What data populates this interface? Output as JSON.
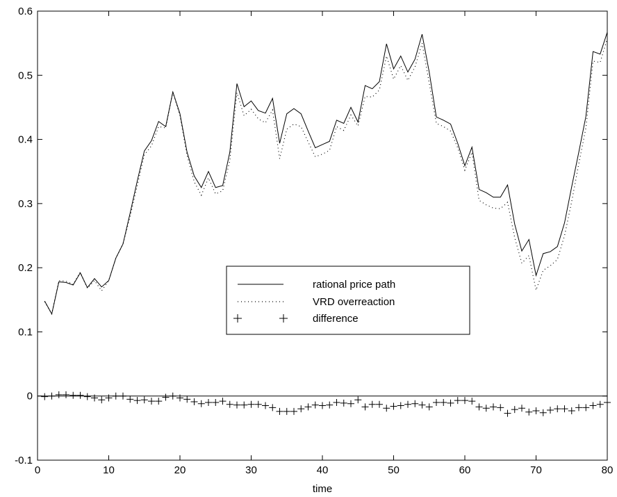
{
  "chart_data": {
    "type": "line",
    "title": "",
    "xlabel": "time",
    "ylabel": "",
    "xlim": [
      0,
      80
    ],
    "ylim": [
      -0.1,
      0.6
    ],
    "x_ticks": [
      0,
      10,
      20,
      30,
      40,
      50,
      60,
      70,
      80
    ],
    "x_tick_labels": [
      "0",
      "10",
      "20",
      "30",
      "40",
      "50",
      "60",
      "70",
      "80"
    ],
    "y_ticks": [
      -0.1,
      0,
      0.1,
      0.2,
      0.3,
      0.4,
      0.5,
      0.6
    ],
    "y_tick_labels": [
      "-0.1",
      "0",
      "0.1",
      "0.2",
      "0.3",
      "0.4",
      "0.5",
      "0.6"
    ],
    "grid": false,
    "legend": {
      "placement": "center"
    },
    "zero_line": true,
    "x": [
      1,
      2,
      3,
      4,
      5,
      6,
      7,
      8,
      9,
      10,
      11,
      12,
      13,
      14,
      15,
      16,
      17,
      18,
      19,
      20,
      21,
      22,
      23,
      24,
      25,
      26,
      27,
      28,
      29,
      30,
      31,
      32,
      33,
      34,
      35,
      36,
      37,
      38,
      39,
      40,
      41,
      42,
      43,
      44,
      45,
      46,
      47,
      48,
      49,
      50,
      51,
      52,
      53,
      54,
      55,
      56,
      57,
      58,
      59,
      60,
      61,
      62,
      63,
      64,
      65,
      66,
      67,
      68,
      69,
      70,
      71,
      72,
      73,
      74,
      75,
      76,
      77,
      78,
      79,
      80
    ],
    "series": [
      {
        "name": "rational price path",
        "style": "solid",
        "values": [
          0.148,
          0.128,
          0.178,
          0.177,
          0.173,
          0.192,
          0.169,
          0.183,
          0.17,
          0.18,
          0.215,
          0.237,
          0.285,
          0.335,
          0.382,
          0.398,
          0.428,
          0.42,
          0.474,
          0.44,
          0.38,
          0.343,
          0.325,
          0.35,
          0.325,
          0.328,
          0.38,
          0.487,
          0.451,
          0.46,
          0.445,
          0.441,
          0.464,
          0.394,
          0.44,
          0.448,
          0.44,
          0.413,
          0.387,
          0.392,
          0.397,
          0.43,
          0.425,
          0.45,
          0.427,
          0.484,
          0.479,
          0.49,
          0.549,
          0.51,
          0.53,
          0.505,
          0.525,
          0.564,
          0.505,
          0.435,
          0.43,
          0.424,
          0.394,
          0.359,
          0.388,
          0.322,
          0.317,
          0.31,
          0.31,
          0.329,
          0.268,
          0.226,
          0.244,
          0.188,
          0.222,
          0.225,
          0.233,
          0.27,
          0.326,
          0.38,
          0.436,
          0.537,
          0.533,
          0.567
        ]
      },
      {
        "name": "VRD overreaction",
        "style": "dotted",
        "values": [
          0.147,
          0.128,
          0.18,
          0.179,
          0.174,
          0.193,
          0.168,
          0.18,
          0.164,
          0.18,
          0.215,
          0.237,
          0.28,
          0.328,
          0.376,
          0.39,
          0.42,
          0.418,
          0.474,
          0.437,
          0.375,
          0.334,
          0.313,
          0.34,
          0.315,
          0.32,
          0.367,
          0.473,
          0.437,
          0.447,
          0.432,
          0.426,
          0.446,
          0.37,
          0.416,
          0.424,
          0.42,
          0.396,
          0.373,
          0.377,
          0.383,
          0.42,
          0.414,
          0.438,
          0.421,
          0.467,
          0.466,
          0.477,
          0.53,
          0.494,
          0.515,
          0.492,
          0.513,
          0.55,
          0.488,
          0.425,
          0.42,
          0.413,
          0.387,
          0.352,
          0.38,
          0.305,
          0.298,
          0.293,
          0.292,
          0.302,
          0.247,
          0.207,
          0.219,
          0.165,
          0.196,
          0.203,
          0.213,
          0.25,
          0.303,
          0.362,
          0.418,
          0.522,
          0.52,
          0.557
        ]
      },
      {
        "name": "difference",
        "style": "plus",
        "values": [
          -0.001,
          0.0,
          0.002,
          0.002,
          0.001,
          0.001,
          -0.001,
          -0.003,
          -0.006,
          -0.003,
          0.0,
          0.0,
          -0.005,
          -0.007,
          -0.006,
          -0.008,
          -0.008,
          -0.002,
          0.0,
          -0.003,
          -0.005,
          -0.009,
          -0.012,
          -0.01,
          -0.01,
          -0.008,
          -0.013,
          -0.014,
          -0.014,
          -0.013,
          -0.013,
          -0.015,
          -0.018,
          -0.024,
          -0.024,
          -0.024,
          -0.02,
          -0.017,
          -0.014,
          -0.015,
          -0.014,
          -0.01,
          -0.011,
          -0.012,
          -0.006,
          -0.017,
          -0.013,
          -0.013,
          -0.019,
          -0.016,
          -0.015,
          -0.013,
          -0.012,
          -0.014,
          -0.017,
          -0.01,
          -0.01,
          -0.011,
          -0.007,
          -0.007,
          -0.008,
          -0.017,
          -0.019,
          -0.017,
          -0.018,
          -0.027,
          -0.021,
          -0.019,
          -0.025,
          -0.023,
          -0.026,
          -0.022,
          -0.02,
          -0.02,
          -0.023,
          -0.018,
          -0.018,
          -0.015,
          -0.013,
          -0.01
        ]
      }
    ]
  }
}
